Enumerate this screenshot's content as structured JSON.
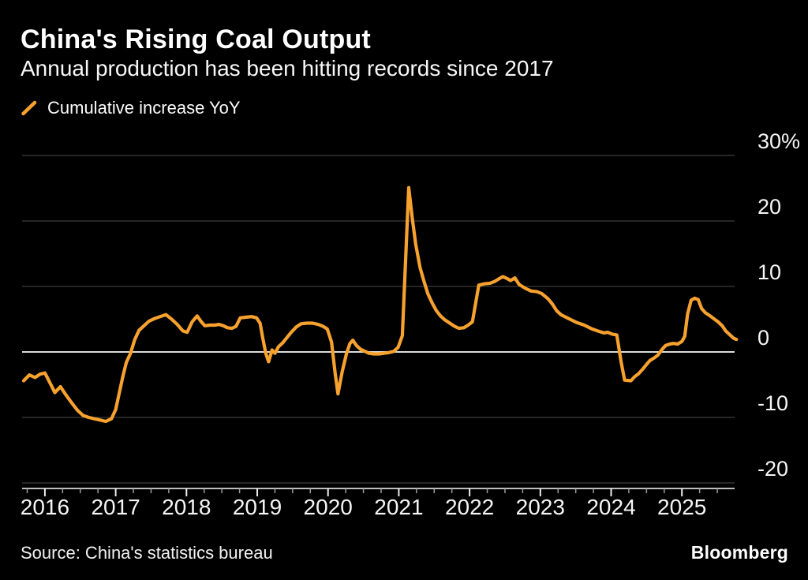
{
  "header": {
    "title": "China's Rising Coal Output",
    "subtitle": "Annual production has been hitting records since 2017"
  },
  "legend": {
    "label": "Cumulative increase YoY"
  },
  "footer": {
    "source": "Source: China's statistics bureau",
    "brand": "Bloomberg"
  },
  "colors": {
    "background": "#000000",
    "line": "#F7A22E",
    "gridline": "#4B4B4B",
    "zero_line": "#DBDBDB",
    "axis_line": "#BDBDBD",
    "minor_tick": "#9A9A9A",
    "major_tick": "#EDEDED",
    "label_text": "#F5F5F5"
  },
  "chart_data": {
    "type": "line",
    "title": "China's Rising Coal Output",
    "subtitle": "Annual production has been hitting records since 2017",
    "unit": "%",
    "grid": "horizontal",
    "legend_position": "top-left",
    "x_range": [
      2015.7,
      2025.78
    ],
    "y_range": [
      -20,
      30
    ],
    "y_ticks": [
      {
        "value": 30,
        "label": "30%"
      },
      {
        "value": 20,
        "label": "20"
      },
      {
        "value": 10,
        "label": "10"
      },
      {
        "value": 0,
        "label": "0"
      },
      {
        "value": -10,
        "label": "-10"
      },
      {
        "value": -20,
        "label": "-20"
      }
    ],
    "x_major_ticks": [
      2016,
      2017,
      2018,
      2019,
      2020,
      2021,
      2022,
      2023,
      2024,
      2025
    ],
    "x_minor_tick_interval": 0.25,
    "series": [
      {
        "name": "Cumulative increase YoY",
        "points": [
          [
            2015.7,
            -4.4
          ],
          [
            2015.78,
            -3.5
          ],
          [
            2015.86,
            -3.9
          ],
          [
            2015.93,
            -3.4
          ],
          [
            2016.0,
            -3.2
          ],
          [
            2016.08,
            -4.9
          ],
          [
            2016.14,
            -6.2
          ],
          [
            2016.22,
            -5.3
          ],
          [
            2016.3,
            -6.6
          ],
          [
            2016.38,
            -7.8
          ],
          [
            2016.46,
            -8.9
          ],
          [
            2016.54,
            -9.7
          ],
          [
            2016.62,
            -10.0
          ],
          [
            2016.7,
            -10.2
          ],
          [
            2016.78,
            -10.4
          ],
          [
            2016.86,
            -10.6
          ],
          [
            2016.94,
            -10.2
          ],
          [
            2017.0,
            -8.8
          ],
          [
            2017.05,
            -6.3
          ],
          [
            2017.1,
            -3.8
          ],
          [
            2017.15,
            -1.6
          ],
          [
            2017.21,
            -0.2
          ],
          [
            2017.27,
            1.9
          ],
          [
            2017.33,
            3.3
          ],
          [
            2017.4,
            4.0
          ],
          [
            2017.47,
            4.7
          ],
          [
            2017.55,
            5.1
          ],
          [
            2017.63,
            5.4
          ],
          [
            2017.71,
            5.7
          ],
          [
            2017.79,
            5.0
          ],
          [
            2017.87,
            4.2
          ],
          [
            2017.95,
            3.2
          ],
          [
            2018.01,
            3.0
          ],
          [
            2018.08,
            4.6
          ],
          [
            2018.15,
            5.5
          ],
          [
            2018.21,
            4.6
          ],
          [
            2018.26,
            4.0
          ],
          [
            2018.33,
            4.1
          ],
          [
            2018.4,
            4.1
          ],
          [
            2018.46,
            4.2
          ],
          [
            2018.52,
            4.0
          ],
          [
            2018.58,
            3.7
          ],
          [
            2018.64,
            3.6
          ],
          [
            2018.7,
            3.9
          ],
          [
            2018.76,
            5.2
          ],
          [
            2018.84,
            5.3
          ],
          [
            2018.92,
            5.4
          ],
          [
            2018.99,
            5.2
          ],
          [
            2019.04,
            4.4
          ],
          [
            2019.08,
            2.0
          ],
          [
            2019.12,
            -0.2
          ],
          [
            2019.16,
            -1.5
          ],
          [
            2019.21,
            0.3
          ],
          [
            2019.25,
            -0.2
          ],
          [
            2019.3,
            0.8
          ],
          [
            2019.36,
            1.4
          ],
          [
            2019.42,
            2.2
          ],
          [
            2019.48,
            3.0
          ],
          [
            2019.55,
            3.8
          ],
          [
            2019.62,
            4.3
          ],
          [
            2019.7,
            4.4
          ],
          [
            2019.78,
            4.4
          ],
          [
            2019.86,
            4.2
          ],
          [
            2019.93,
            3.9
          ],
          [
            2019.99,
            3.5
          ],
          [
            2020.05,
            1.5
          ],
          [
            2020.1,
            -3.2
          ],
          [
            2020.14,
            -6.4
          ],
          [
            2020.2,
            -3.0
          ],
          [
            2020.26,
            -0.3
          ],
          [
            2020.31,
            1.3
          ],
          [
            2020.35,
            1.8
          ],
          [
            2020.4,
            1.0
          ],
          [
            2020.46,
            0.4
          ],
          [
            2020.52,
            0.1
          ],
          [
            2020.58,
            -0.2
          ],
          [
            2020.65,
            -0.3
          ],
          [
            2020.72,
            -0.3
          ],
          [
            2020.79,
            -0.2
          ],
          [
            2020.86,
            -0.1
          ],
          [
            2020.93,
            0.1
          ],
          [
            2020.99,
            0.7
          ],
          [
            2021.05,
            2.5
          ],
          [
            2021.14,
            25.1
          ],
          [
            2021.19,
            20.4
          ],
          [
            2021.24,
            16.4
          ],
          [
            2021.3,
            12.9
          ],
          [
            2021.35,
            11.0
          ],
          [
            2021.41,
            8.9
          ],
          [
            2021.47,
            7.5
          ],
          [
            2021.53,
            6.3
          ],
          [
            2021.59,
            5.5
          ],
          [
            2021.65,
            4.9
          ],
          [
            2021.72,
            4.4
          ],
          [
            2021.79,
            3.9
          ],
          [
            2021.85,
            3.6
          ],
          [
            2021.92,
            3.7
          ],
          [
            2021.98,
            4.1
          ],
          [
            2022.04,
            4.6
          ],
          [
            2022.13,
            10.2
          ],
          [
            2022.21,
            10.4
          ],
          [
            2022.29,
            10.5
          ],
          [
            2022.36,
            10.8
          ],
          [
            2022.42,
            11.2
          ],
          [
            2022.47,
            11.5
          ],
          [
            2022.53,
            11.2
          ],
          [
            2022.58,
            10.9
          ],
          [
            2022.64,
            11.3
          ],
          [
            2022.7,
            10.3
          ],
          [
            2022.79,
            9.7
          ],
          [
            2022.87,
            9.3
          ],
          [
            2022.95,
            9.2
          ],
          [
            2023.02,
            8.9
          ],
          [
            2023.11,
            8.1
          ],
          [
            2023.17,
            7.3
          ],
          [
            2023.23,
            6.3
          ],
          [
            2023.29,
            5.7
          ],
          [
            2023.4,
            5.1
          ],
          [
            2023.51,
            4.5
          ],
          [
            2023.62,
            4.1
          ],
          [
            2023.73,
            3.5
          ],
          [
            2023.84,
            3.1
          ],
          [
            2023.9,
            2.9
          ],
          [
            2023.95,
            3.0
          ],
          [
            2024.02,
            2.7
          ],
          [
            2024.08,
            2.6
          ],
          [
            2024.14,
            -1.5
          ],
          [
            2024.19,
            -4.3
          ],
          [
            2024.28,
            -4.4
          ],
          [
            2024.33,
            -3.8
          ],
          [
            2024.39,
            -3.3
          ],
          [
            2024.44,
            -2.7
          ],
          [
            2024.5,
            -1.9
          ],
          [
            2024.55,
            -1.3
          ],
          [
            2024.61,
            -0.9
          ],
          [
            2024.66,
            -0.5
          ],
          [
            2024.72,
            0.4
          ],
          [
            2024.77,
            1.0
          ],
          [
            2024.83,
            1.2
          ],
          [
            2024.88,
            1.3
          ],
          [
            2024.94,
            1.2
          ],
          [
            2025.0,
            1.6
          ],
          [
            2025.04,
            2.4
          ],
          [
            2025.08,
            5.8
          ],
          [
            2025.13,
            7.9
          ],
          [
            2025.18,
            8.2
          ],
          [
            2025.23,
            8.0
          ],
          [
            2025.28,
            6.6
          ],
          [
            2025.33,
            6.0
          ],
          [
            2025.4,
            5.5
          ],
          [
            2025.46,
            5.0
          ],
          [
            2025.51,
            4.6
          ],
          [
            2025.57,
            4.0
          ],
          [
            2025.62,
            3.2
          ],
          [
            2025.68,
            2.6
          ],
          [
            2025.73,
            2.1
          ],
          [
            2025.77,
            1.9
          ]
        ]
      }
    ]
  }
}
